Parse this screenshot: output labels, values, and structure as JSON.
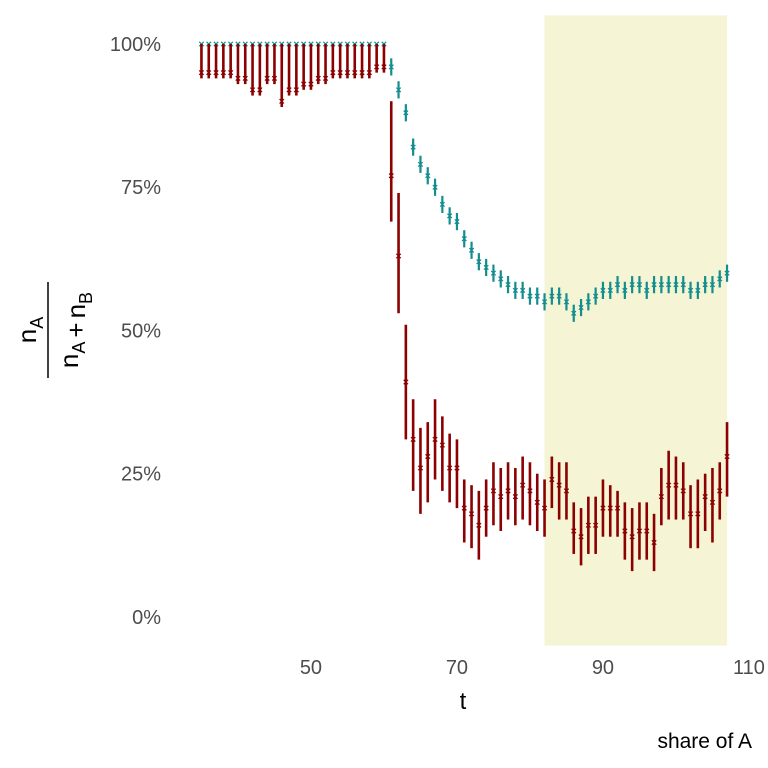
{
  "chart_data": {
    "type": "errorbar",
    "ylabel": {
      "numerator": [
        [
          "n",
          "A"
        ]
      ],
      "denominator": [
        [
          "n",
          "A"
        ],
        [
          "+"
        ],
        [
          "n",
          "B"
        ]
      ]
    },
    "xlabel": "t",
    "caption": "share of A",
    "xlim": [
      33.5,
      110.5
    ],
    "xticks": [
      50,
      70,
      90,
      110
    ],
    "ylim": [
      -5,
      105
    ],
    "yticks": [
      {
        "value": 0,
        "label": "0%"
      },
      {
        "value": 25,
        "label": "25%"
      },
      {
        "value": 50,
        "label": "50%"
      },
      {
        "value": 75,
        "label": "75%"
      },
      {
        "value": 100,
        "label": "100%"
      }
    ],
    "highlight": {
      "xlim": [
        82,
        107
      ],
      "color": "#f5f5d6"
    },
    "x": [
      35,
      36,
      37,
      38,
      39,
      40,
      41,
      42,
      43,
      44,
      45,
      46,
      47,
      48,
      49,
      50,
      51,
      52,
      53,
      54,
      55,
      56,
      57,
      58,
      59,
      60,
      61,
      62,
      63,
      64,
      65,
      66,
      67,
      68,
      69,
      70,
      71,
      72,
      73,
      74,
      75,
      76,
      77,
      78,
      79,
      80,
      81,
      82,
      83,
      84,
      85,
      86,
      87,
      88,
      89,
      90,
      91,
      92,
      93,
      94,
      95,
      96,
      97,
      98,
      99,
      100,
      101,
      102,
      103,
      104,
      105,
      106,
      107
    ],
    "series": [
      {
        "color": "#138d8d",
        "values": [
          100,
          100,
          100,
          100,
          100,
          100,
          100,
          100,
          100,
          100,
          100,
          100,
          100,
          100,
          100,
          100,
          100,
          100,
          100,
          100,
          100,
          100,
          100,
          100,
          100,
          100,
          96,
          92,
          88,
          82,
          79,
          77,
          75,
          72,
          70,
          69,
          66,
          64,
          62,
          61,
          60,
          59,
          58,
          57,
          57,
          56,
          56,
          55,
          56,
          56,
          55,
          53,
          54,
          55,
          56,
          57,
          57,
          58,
          57,
          58,
          58,
          57,
          58,
          58,
          58,
          58,
          58,
          57,
          57,
          58,
          58,
          59,
          60
        ],
        "lower": [
          99.5,
          99.5,
          99.5,
          99.5,
          99.5,
          99.5,
          99.5,
          99.5,
          99.5,
          99.5,
          99.5,
          99.5,
          99.5,
          99.5,
          99.5,
          99.5,
          99.5,
          99.5,
          99.5,
          99.5,
          99.5,
          99.5,
          99.5,
          99.5,
          99.5,
          99.5,
          94.5,
          90.5,
          86.5,
          80.5,
          77.5,
          75.5,
          73.5,
          70.5,
          68.5,
          67.5,
          64.5,
          62.5,
          60.5,
          59.5,
          58.5,
          57.5,
          56.5,
          55.5,
          55.5,
          54.5,
          54.5,
          53.5,
          54.5,
          54.5,
          53.5,
          51.5,
          52.5,
          53.5,
          54.5,
          55.5,
          55.5,
          56.5,
          55.5,
          56.5,
          56.5,
          55.5,
          56.5,
          56.5,
          56.5,
          56.5,
          56.5,
          55.5,
          55.5,
          56.5,
          56.5,
          57.5,
          58.5
        ],
        "upper": [
          100,
          100,
          100,
          100,
          100,
          100,
          100,
          100,
          100,
          100,
          100,
          100,
          100,
          100,
          100,
          100,
          100,
          100,
          100,
          100,
          100,
          100,
          100,
          100,
          100,
          100,
          97.5,
          93.5,
          89.5,
          83.5,
          80.5,
          78.5,
          76.5,
          73.5,
          71.5,
          70.5,
          67.5,
          65.5,
          63.5,
          62.5,
          61.5,
          60.5,
          59.5,
          58.5,
          58.5,
          57.5,
          57.5,
          56.5,
          57.5,
          57.5,
          56.5,
          54.5,
          55.5,
          56.5,
          57.5,
          58.5,
          58.5,
          59.5,
          58.5,
          59.5,
          59.5,
          58.5,
          59.5,
          59.5,
          59.5,
          59.5,
          59.5,
          58.5,
          58.5,
          59.5,
          59.5,
          60.5,
          61.5
        ]
      },
      {
        "color": "#8b0000",
        "values": [
          95,
          95,
          95,
          95,
          95,
          94,
          94,
          92,
          92,
          94,
          94,
          90,
          92,
          92,
          93,
          93,
          94,
          94,
          95,
          95,
          95,
          95,
          95,
          95,
          96,
          96,
          77,
          63,
          41,
          31,
          26,
          28,
          31,
          30,
          26,
          26,
          19,
          18,
          16,
          19,
          22,
          21,
          22,
          21,
          23,
          22,
          20,
          19,
          24,
          23,
          22,
          15,
          14,
          16,
          16,
          19,
          19,
          19,
          15,
          14,
          15,
          15,
          13,
          21,
          23,
          23,
          22,
          18,
          18,
          21,
          20,
          22,
          28
        ],
        "lower": [
          94,
          94,
          94,
          94,
          94,
          93,
          93,
          91,
          91,
          93,
          93,
          89,
          91,
          91,
          92,
          92,
          93,
          93,
          94,
          94,
          94,
          94,
          94,
          94,
          95,
          95,
          69,
          53,
          31,
          22,
          18,
          20,
          24,
          22,
          20,
          19,
          13,
          12,
          10,
          14,
          16,
          15,
          17,
          16,
          17,
          16,
          15,
          14,
          19,
          17,
          17,
          11,
          9,
          11,
          11,
          14,
          14,
          14,
          10,
          8,
          10,
          10,
          8,
          16,
          17,
          17,
          17,
          12,
          12,
          15,
          13,
          17,
          21
        ],
        "upper": [
          100,
          100,
          100,
          100,
          100,
          100,
          100,
          100,
          100,
          100,
          100,
          100,
          100,
          100,
          100,
          100,
          100,
          100,
          100,
          100,
          100,
          100,
          100,
          100,
          100,
          100,
          90,
          74,
          51,
          38,
          33,
          34,
          38,
          35,
          32,
          31,
          24,
          23,
          22,
          24,
          27,
          26,
          27,
          26,
          28,
          27,
          25,
          24,
          28,
          27,
          27,
          20,
          19,
          21,
          21,
          24,
          23,
          22,
          20,
          19,
          20,
          20,
          18,
          26,
          29,
          28,
          27,
          23,
          24,
          25,
          26,
          27,
          34
        ]
      }
    ]
  }
}
